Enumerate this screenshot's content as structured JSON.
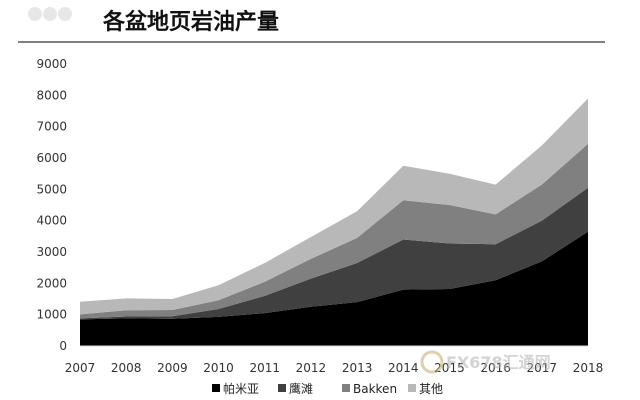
{
  "header": {
    "title": "各盆地页岩油产量"
  },
  "watermark": {
    "text": "FX678汇通网"
  },
  "colors": {
    "series": [
      "#000000",
      "#404040",
      "#808080",
      "#b8b8b8"
    ],
    "axis": "#d9d9d9",
    "title_rule": "#000000"
  },
  "chart_data": {
    "type": "area",
    "stacked": true,
    "title": "各盆地页岩油产量",
    "xlabel": "",
    "ylabel": "",
    "x": [
      "2007",
      "2008",
      "2009",
      "2010",
      "2011",
      "2012",
      "2013",
      "2014",
      "2015",
      "2016",
      "2017",
      "2018"
    ],
    "ylim": [
      0,
      9000
    ],
    "yticks": [
      0,
      1000,
      2000,
      3000,
      4000,
      5000,
      6000,
      7000,
      8000,
      9000
    ],
    "grid": false,
    "legend_position": "bottom",
    "series": [
      {
        "name": "帕米亚",
        "values": [
          850,
          880,
          870,
          930,
          1050,
          1250,
          1400,
          1800,
          1820,
          2100,
          2700,
          3650
        ]
      },
      {
        "name": "鹰滩",
        "values": [
          30,
          60,
          80,
          250,
          550,
          900,
          1250,
          1600,
          1450,
          1150,
          1300,
          1400
        ]
      },
      {
        "name": "Bakken",
        "values": [
          130,
          200,
          200,
          280,
          450,
          630,
          800,
          1250,
          1230,
          950,
          1150,
          1400
        ]
      },
      {
        "name": "其他",
        "values": [
          400,
          380,
          350,
          480,
          600,
          700,
          850,
          1100,
          1000,
          950,
          1250,
          1450
        ]
      }
    ]
  }
}
